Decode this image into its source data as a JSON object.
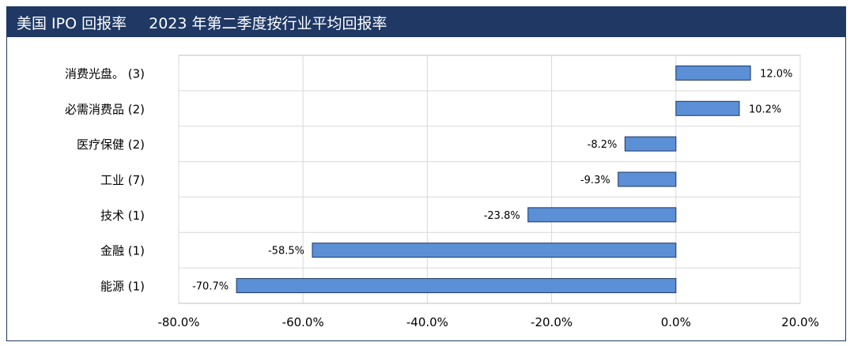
{
  "header": {
    "title": "美国 IPO 回报率",
    "subtitle": "2023 年第二季度按行业平均回报率"
  },
  "colors": {
    "title_bg": "#1f3864",
    "bar_fill": "#5b8fd6",
    "bar_stroke": "#1f3864",
    "grid": "#d9d9d9"
  },
  "chart_data": {
    "type": "bar",
    "orientation": "horizontal",
    "categories": [
      "消费光盘。 (3)",
      "必需消费品 (2)",
      "医疗保健 (2)",
      "工业 (7)",
      "技术 (1)",
      "金融 (1)",
      "能源 (1)"
    ],
    "values": [
      12.0,
      10.2,
      -8.2,
      -9.3,
      -23.8,
      -58.5,
      -70.7
    ],
    "value_labels": [
      "12.0%",
      "10.2%",
      "-8.2%",
      "-9.3%",
      "-23.8%",
      "-58.5%",
      "-70.7%"
    ],
    "xlim": [
      -80,
      20
    ],
    "x_ticks": [
      -80,
      -60,
      -40,
      -20,
      0,
      20
    ],
    "x_tick_labels": [
      "-80.0%",
      "-60.0%",
      "-40.0%",
      "-20.0%",
      "0.0%",
      "20.0%"
    ],
    "grid": true,
    "legend": "none"
  }
}
